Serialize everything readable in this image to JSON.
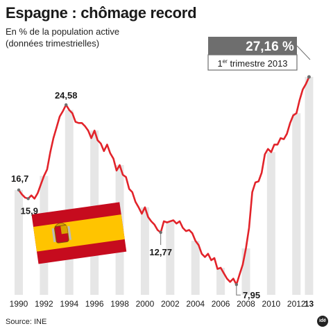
{
  "title": "Espagne : chômage record",
  "subtitle_line1": "En % de la population active",
  "subtitle_line2": "(données trimestrielles)",
  "source": "Source: INE",
  "logo_text": "idé",
  "colors": {
    "line": "#e2232a",
    "bars": "#e6e6e6",
    "callout_bg": "#6e6e6e",
    "flag_red": "#c60b1e",
    "flag_yellow": "#ffc400"
  },
  "chart_data": {
    "type": "line",
    "x_tick_labels": [
      "1990",
      "1992",
      "1994",
      "1996",
      "1998",
      "2000",
      "2002",
      "2004",
      "2006",
      "2008",
      "2010",
      "2012",
      "13"
    ],
    "xlim": [
      1990,
      2013.25
    ],
    "ylim": [
      7,
      28.5
    ],
    "grid": false,
    "series": [
      {
        "x": [
          1990,
          1990.25,
          1990.5,
          1990.75,
          1991,
          1991.25,
          1991.5,
          1991.75,
          1992,
          1992.25,
          1992.5,
          1992.75,
          1993,
          1993.25,
          1993.5,
          1993.75,
          1994,
          1994.25,
          1994.5,
          1994.75,
          1995,
          1995.25,
          1995.5,
          1995.75,
          1996,
          1996.25,
          1996.5,
          1996.75,
          1997,
          1997.25,
          1997.5,
          1997.75,
          1998,
          1998.25,
          1998.5,
          1998.75,
          1999,
          1999.25,
          1999.5,
          1999.75,
          2000,
          2000.25,
          2000.5,
          2000.75,
          2001,
          2001.25,
          2001.5,
          2001.75,
          2002,
          2002.25,
          2002.5,
          2002.75,
          2003,
          2003.25,
          2003.5,
          2003.75,
          2004,
          2004.25,
          2004.5,
          2004.75,
          2005,
          2005.25,
          2005.5,
          2005.75,
          2006,
          2006.25,
          2006.5,
          2006.75,
          2007,
          2007.25,
          2007.5,
          2007.75,
          2008,
          2008.25,
          2008.5,
          2008.75,
          2009,
          2009.25,
          2009.5,
          2009.75,
          2010,
          2010.25,
          2010.5,
          2010.75,
          2011,
          2011.25,
          2011.5,
          2011.75,
          2012,
          2012.25,
          2012.5,
          2012.75,
          2013
        ],
        "y": [
          16.7,
          16.3,
          16.0,
          15.9,
          16.2,
          15.9,
          16.4,
          17.2,
          18.0,
          18.6,
          20.2,
          21.5,
          22.5,
          23.5,
          24.0,
          24.58,
          24.1,
          23.8,
          23.0,
          22.9,
          22.9,
          22.6,
          22.2,
          21.5,
          22.2,
          21.3,
          21.0,
          20.3,
          20.9,
          20.1,
          19.6,
          18.5,
          19.0,
          18.1,
          17.9,
          16.8,
          16.5,
          15.6,
          15.1,
          14.5,
          15.1,
          14.2,
          13.8,
          13.5,
          13.0,
          12.77,
          13.8,
          13.7,
          13.8,
          13.9,
          13.6,
          13.8,
          13.2,
          12.9,
          13.0,
          12.7,
          12.0,
          11.6,
          10.8,
          10.5,
          10.8,
          10.2,
          10.4,
          9.4,
          9.5,
          9.0,
          8.5,
          8.2,
          8.5,
          7.95,
          8.9,
          9.8,
          11.3,
          13.2,
          16.5,
          17.4,
          17.5,
          18.3,
          20.0,
          20.5,
          20.2,
          20.9,
          20.9,
          21.5,
          21.4,
          21.9,
          22.9,
          23.6,
          23.8,
          25.0,
          26.0,
          26.5,
          27.16
        ],
        "bars_x": [
          1990,
          1992,
          1994,
          1996,
          1998,
          2000,
          2002,
          2004,
          2006,
          2008,
          2010,
          2012,
          2013
        ]
      }
    ],
    "annotations": [
      {
        "text": "16,7",
        "x": 1990,
        "y": 16.7,
        "pos": "above-left"
      },
      {
        "text": "15,9",
        "x": 1990.75,
        "y": 15.9,
        "pos": "below-left"
      },
      {
        "text": "24,58",
        "x": 1993.75,
        "y": 24.58,
        "pos": "above"
      },
      {
        "text": "12,77",
        "x": 2001.25,
        "y": 12.77,
        "pos": "below"
      },
      {
        "text": "7,95",
        "x": 2007.25,
        "y": 7.95,
        "pos": "right"
      }
    ],
    "callout": {
      "value": "27,16 %",
      "label_sup": "er",
      "label_pre": "1",
      "label_post": " trimestre 2013"
    }
  }
}
